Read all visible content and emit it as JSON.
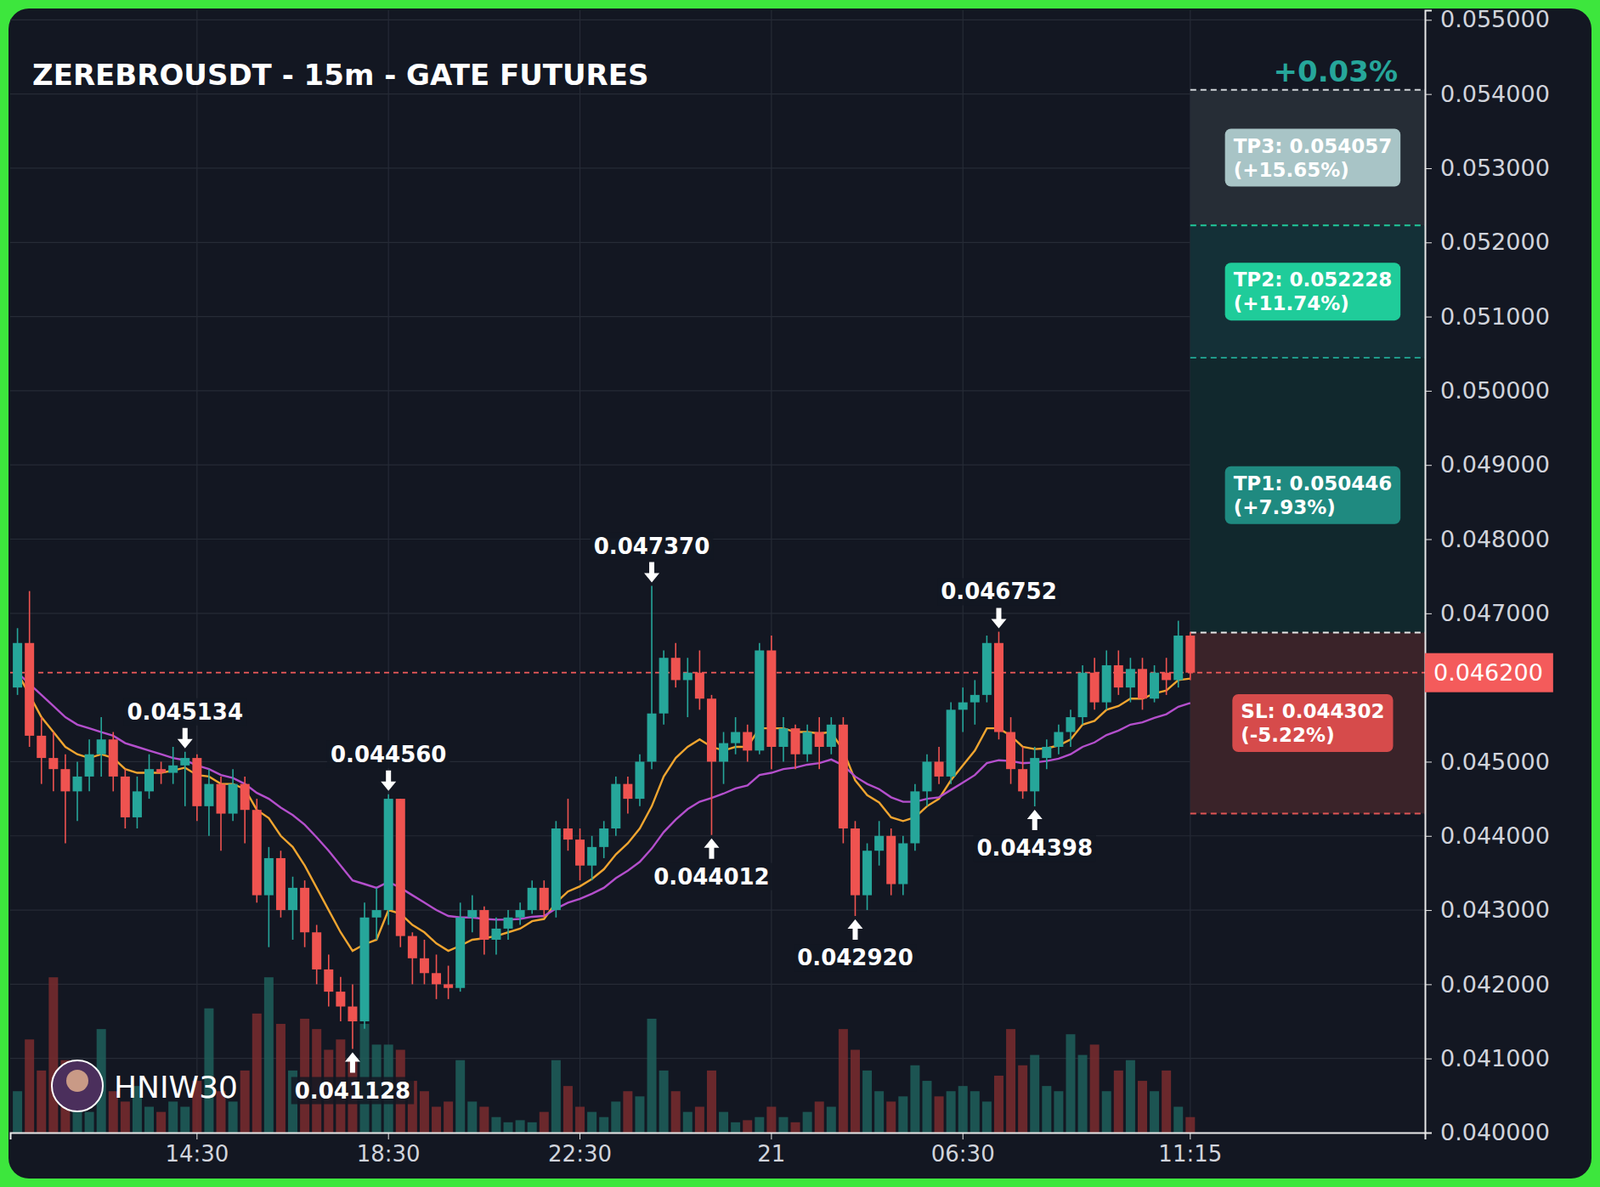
{
  "chart_data": {
    "type": "candlestick",
    "title": "ZEREBROUSDT - 15m - GATE FUTURES",
    "categories": [
      null,
      null,
      null,
      null,
      null,
      null,
      null,
      null,
      null,
      null,
      null,
      null,
      null,
      null,
      null,
      "14:30",
      null,
      null,
      null,
      null,
      null,
      null,
      null,
      null,
      null,
      null,
      null,
      null,
      null,
      null,
      null,
      "18:30",
      null,
      null,
      null,
      null,
      null,
      null,
      null,
      null,
      null,
      null,
      null,
      null,
      null,
      null,
      null,
      "22:30",
      null,
      null,
      null,
      null,
      null,
      null,
      null,
      null,
      null,
      null,
      null,
      null,
      null,
      null,
      null,
      "21",
      null,
      null,
      null,
      null,
      null,
      null,
      null,
      null,
      null,
      null,
      null,
      null,
      null,
      null,
      null,
      "06:30",
      null,
      null,
      null,
      null,
      null,
      null,
      null,
      null,
      null,
      null,
      null,
      null,
      null,
      null,
      null,
      null,
      null,
      null,
      "11:15",
      null,
      null,
      null,
      null,
      null,
      null,
      null,
      null,
      null,
      null,
      null,
      null,
      null,
      null,
      null,
      null,
      null,
      null,
      null
    ],
    "open": [
      0.046,
      0.0466,
      0.04535,
      0.04505,
      0.0449,
      0.0446,
      0.0448,
      0.0451,
      0.0453,
      0.0448,
      0.04425,
      0.0446,
      0.0449,
      0.04485,
      0.04495,
      0.04505,
      0.0444,
      0.0447,
      0.0443,
      0.0447,
      0.04435,
      0.0432,
      0.0437,
      0.043,
      0.0433,
      0.0427,
      0.0422,
      0.0419,
      0.0417,
      0.0415,
      0.0429,
      0.043,
      0.0445,
      0.04265,
      0.04235,
      0.04215,
      0.042,
      0.04195,
      0.0429,
      0.043,
      0.0426,
      0.04275,
      0.0429,
      0.043,
      0.0433,
      0.043,
      0.0441,
      0.04395,
      0.0436,
      0.04385,
      0.0441,
      0.0447,
      0.0445,
      0.045,
      0.04565,
      0.0464,
      0.0461,
      0.0462,
      0.04585,
      0.045,
      0.04525,
      0.0454,
      0.04515,
      0.0465,
      0.0452,
      0.04545,
      0.0451,
      0.0454,
      0.0452,
      0.0455,
      0.0441,
      0.0432,
      0.0438,
      0.044,
      0.04335,
      0.0439,
      0.0446,
      0.045,
      0.0448,
      0.0457,
      0.0458,
      0.0459,
      0.0466,
      0.0454,
      0.0449,
      0.0446,
      0.04505,
      0.0452,
      0.0454,
      0.0456,
      0.0462,
      0.0458,
      0.0463,
      0.046,
      0.04625,
      0.04585,
      0.0462,
      0.0461,
      0.0467,
      null,
      null,
      null,
      null,
      null,
      null,
      null,
      null,
      null,
      null,
      null,
      null,
      null,
      null,
      null,
      null,
      null,
      null,
      null
    ],
    "high": [
      0.0468,
      0.0473,
      0.0456,
      0.0454,
      0.0451,
      0.045,
      0.0453,
      0.0456,
      0.0454,
      0.0449,
      0.0448,
      0.0451,
      0.045,
      0.0452,
      0.045134,
      0.0451,
      0.0449,
      0.0448,
      0.0449,
      0.0448,
      0.0445,
      0.04385,
      0.0438,
      0.04345,
      0.0434,
      0.0428,
      0.0424,
      0.0421,
      0.042,
      0.0431,
      0.0433,
      0.04456,
      0.0445,
      0.0427,
      0.0426,
      0.0424,
      0.04225,
      0.0431,
      0.0432,
      0.04305,
      0.0429,
      0.043,
      0.0431,
      0.0434,
      0.0434,
      0.0442,
      0.0445,
      0.0441,
      0.044,
      0.0442,
      0.0448,
      0.0448,
      0.0451,
      0.04737,
      0.0465,
      0.0466,
      0.0464,
      0.0465,
      0.0459,
      0.0454,
      0.0456,
      0.0455,
      0.0466,
      0.0467,
      0.0456,
      0.0455,
      0.0455,
      0.0456,
      0.0456,
      0.0456,
      0.0442,
      0.0439,
      0.0442,
      0.0441,
      0.044,
      0.0447,
      0.0451,
      0.0452,
      0.0458,
      0.046,
      0.0461,
      0.0467,
      0.046752,
      0.0456,
      0.0452,
      0.0452,
      0.0453,
      0.0455,
      0.0457,
      0.0463,
      0.0464,
      0.0465,
      0.0465,
      0.0464,
      0.0464,
      0.0463,
      0.0464,
      0.0469,
      0.04675,
      null,
      null,
      null,
      null,
      null,
      null,
      null,
      null,
      null,
      null,
      null,
      null,
      null,
      null,
      null,
      null,
      null,
      null,
      null
    ],
    "low": [
      0.0459,
      0.0452,
      0.0447,
      0.0446,
      0.0439,
      0.0442,
      0.0446,
      0.0448,
      0.0446,
      0.0441,
      0.0441,
      0.0445,
      0.0447,
      0.0447,
      0.0444,
      0.0442,
      0.044,
      0.0438,
      0.0442,
      0.0439,
      0.0431,
      0.0425,
      0.0429,
      0.0426,
      0.0425,
      0.042,
      0.0417,
      0.0415,
      0.041128,
      0.0414,
      0.0426,
      0.0428,
      0.0425,
      0.042,
      0.042,
      0.0418,
      0.0418,
      0.0419,
      0.0427,
      0.0424,
      0.0424,
      0.0426,
      0.0428,
      0.04295,
      0.0429,
      0.0429,
      0.0438,
      0.0434,
      0.0434,
      0.0437,
      0.044,
      0.0443,
      0.0444,
      0.0449,
      0.0455,
      0.046,
      0.0456,
      0.0457,
      0.044012,
      0.0447,
      0.0451,
      0.045,
      0.0451,
      0.0449,
      0.045,
      0.0449,
      0.045,
      0.0449,
      0.0451,
      0.0439,
      0.04292,
      0.043,
      0.0436,
      0.0432,
      0.0432,
      0.0438,
      0.0444,
      0.0447,
      0.0447,
      0.0454,
      0.0455,
      0.0458,
      0.0453,
      0.0447,
      0.0445,
      0.044398,
      0.0449,
      0.0451,
      0.0452,
      0.0455,
      0.0457,
      0.0457,
      0.0459,
      0.0458,
      0.0457,
      0.0458,
      0.0459,
      0.046,
      0.0461,
      null,
      null,
      null,
      null,
      null,
      null,
      null,
      null,
      null,
      null,
      null,
      null,
      null,
      null,
      null,
      null,
      null,
      null,
      null
    ],
    "close": [
      0.0466,
      0.04535,
      0.04505,
      0.0449,
      0.0446,
      0.0448,
      0.0451,
      0.0453,
      0.0448,
      0.04425,
      0.0446,
      0.0449,
      0.04485,
      0.04495,
      0.04505,
      0.0444,
      0.0447,
      0.0443,
      0.0447,
      0.04435,
      0.0432,
      0.0437,
      0.043,
      0.0433,
      0.0427,
      0.0422,
      0.0419,
      0.0417,
      0.0415,
      0.0429,
      0.043,
      0.0445,
      0.04265,
      0.04235,
      0.04215,
      0.042,
      0.04195,
      0.0429,
      0.043,
      0.0426,
      0.04275,
      0.0429,
      0.043,
      0.0433,
      0.043,
      0.0441,
      0.04395,
      0.0436,
      0.04385,
      0.0441,
      0.0447,
      0.0445,
      0.045,
      0.04565,
      0.0464,
      0.0461,
      0.0462,
      0.04585,
      0.045,
      0.04525,
      0.0454,
      0.04515,
      0.0465,
      0.0452,
      0.04545,
      0.0451,
      0.0454,
      0.0452,
      0.0455,
      0.0441,
      0.0432,
      0.0438,
      0.044,
      0.04335,
      0.0439,
      0.0446,
      0.045,
      0.0448,
      0.0457,
      0.0458,
      0.0459,
      0.0466,
      0.0454,
      0.0449,
      0.0446,
      0.04505,
      0.0452,
      0.0454,
      0.0456,
      0.0462,
      0.0458,
      0.0463,
      0.046,
      0.04625,
      0.04585,
      0.0462,
      0.0461,
      0.0467,
      0.0462,
      null,
      null,
      null,
      null,
      null,
      null,
      null,
      null,
      null,
      null,
      null,
      null,
      null,
      null,
      null,
      null,
      null,
      null,
      null
    ],
    "volume": [
      40,
      90,
      60,
      150,
      70,
      30,
      20,
      100,
      40,
      30,
      45,
      25,
      20,
      30,
      25,
      50,
      120,
      40,
      30,
      60,
      115,
      150,
      105,
      60,
      110,
      100,
      80,
      90,
      70,
      105,
      85,
      85,
      80,
      50,
      40,
      25,
      30,
      70,
      30,
      25,
      15,
      10,
      12,
      10,
      20,
      70,
      45,
      25,
      20,
      15,
      30,
      40,
      35,
      110,
      60,
      40,
      20,
      25,
      60,
      20,
      10,
      12,
      15,
      25,
      15,
      10,
      20,
      30,
      25,
      100,
      80,
      60,
      40,
      30,
      35,
      65,
      50,
      35,
      40,
      45,
      40,
      30,
      55,
      100,
      65,
      75,
      45,
      40,
      95,
      75,
      85,
      40,
      60,
      70,
      50,
      40,
      60,
      25,
      15,
      null,
      null,
      null,
      null,
      null,
      null,
      null,
      null,
      null,
      null,
      null,
      null,
      null,
      null,
      null,
      null,
      null,
      null,
      null
    ],
    "volume_lim": [
      0,
      160
    ],
    "series": [
      {
        "type": "line",
        "color": "#f0a530",
        "values": [
          0.0462,
          0.0459,
          0.0456,
          0.0454,
          0.0452,
          0.0451,
          0.04505,
          0.0451,
          0.04505,
          0.0449,
          0.04485,
          0.04485,
          0.04485,
          0.04488,
          0.04492,
          0.04482,
          0.0448,
          0.0447,
          0.0447,
          0.04463,
          0.04435,
          0.04424,
          0.044,
          0.04385,
          0.0436,
          0.0433,
          0.043,
          0.0427,
          0.04245,
          0.04254,
          0.0426,
          0.043,
          0.04295,
          0.0428,
          0.0427,
          0.04255,
          0.04245,
          0.04252,
          0.0426,
          0.04262,
          0.04265,
          0.0427,
          0.04275,
          0.04285,
          0.04288,
          0.0431,
          0.04325,
          0.04332,
          0.04342,
          0.04355,
          0.04375,
          0.0439,
          0.0441,
          0.0444,
          0.0448,
          0.04505,
          0.0452,
          0.0453,
          0.0452,
          0.04515,
          0.0452,
          0.0452,
          0.04545,
          0.04545,
          0.04545,
          0.0454,
          0.0454,
          0.04538,
          0.0454,
          0.04515,
          0.04475,
          0.04455,
          0.04445,
          0.04425,
          0.0442,
          0.04425,
          0.0444,
          0.0445,
          0.04475,
          0.04495,
          0.04515,
          0.04545,
          0.04545,
          0.04535,
          0.0452,
          0.04517,
          0.04518,
          0.04522,
          0.0453,
          0.0455,
          0.04555,
          0.0457,
          0.04575,
          0.04585,
          0.04585,
          0.04592,
          0.04596,
          0.0461,
          0.04612,
          null,
          null,
          null,
          null,
          null,
          null,
          null,
          null,
          null,
          null,
          null,
          null,
          null,
          null,
          null,
          null,
          null,
          null,
          null
        ]
      },
      {
        "type": "line",
        "color": "#b44fcc",
        "values": [
          0.0462,
          0.04605,
          0.0459,
          0.04575,
          0.0456,
          0.0455,
          0.04545,
          0.0454,
          0.04535,
          0.04525,
          0.0452,
          0.04515,
          0.0451,
          0.04505,
          0.04502,
          0.04495,
          0.0449,
          0.04482,
          0.04478,
          0.0447,
          0.04458,
          0.0445,
          0.04438,
          0.04428,
          0.04415,
          0.04398,
          0.0438,
          0.0436,
          0.0434,
          0.04335,
          0.0433,
          0.04338,
          0.0433,
          0.0432,
          0.0431,
          0.043,
          0.04292,
          0.0429,
          0.0429,
          0.04288,
          0.04287,
          0.04287,
          0.04288,
          0.04291,
          0.04292,
          0.04302,
          0.0431,
          0.04315,
          0.04322,
          0.0433,
          0.04343,
          0.04353,
          0.04365,
          0.04383,
          0.04405,
          0.04422,
          0.04436,
          0.04446,
          0.04451,
          0.04457,
          0.04464,
          0.04468,
          0.04482,
          0.04485,
          0.0449,
          0.04492,
          0.04496,
          0.04498,
          0.04503,
          0.04495,
          0.0448,
          0.0447,
          0.04463,
          0.04452,
          0.04446,
          0.04446,
          0.0445,
          0.04452,
          0.04462,
          0.04472,
          0.04482,
          0.04498,
          0.04502,
          0.04501,
          0.04498,
          0.04499,
          0.04501,
          0.04504,
          0.0451,
          0.0452,
          0.04526,
          0.04536,
          0.04542,
          0.0455,
          0.04553,
          0.04559,
          0.04564,
          0.04574,
          0.04579,
          null,
          null,
          null,
          null,
          null,
          null,
          null,
          null,
          null,
          null,
          null,
          null,
          null,
          null,
          null,
          null,
          null,
          null,
          null
        ]
      }
    ],
    "ylim": [
      0.04,
      0.05513
    ],
    "yticks": [
      {
        "value": 0.04,
        "label": "0.040000"
      },
      {
        "value": 0.041,
        "label": "0.041000"
      },
      {
        "value": 0.042,
        "label": "0.042000"
      },
      {
        "value": 0.043,
        "label": "0.043000"
      },
      {
        "value": 0.044,
        "label": "0.044000"
      },
      {
        "value": 0.045,
        "label": "0.045000"
      },
      {
        "value": 0.047,
        "label": "0.047000"
      },
      {
        "value": 0.048,
        "label": "0.048000"
      },
      {
        "value": 0.049,
        "label": "0.049000"
      },
      {
        "value": 0.05,
        "label": "0.050000"
      },
      {
        "value": 0.051,
        "label": "0.051000"
      },
      {
        "value": 0.052,
        "label": "0.052000"
      },
      {
        "value": 0.053,
        "label": "0.053000"
      },
      {
        "value": 0.054,
        "label": "0.054000"
      },
      {
        "value": 0.055,
        "label": "0.055000"
      }
    ],
    "grid": true,
    "last_price": {
      "value": 0.0462,
      "label": "0.046200"
    },
    "annotations": [
      {
        "text": "0.045134",
        "index": 14,
        "value": 0.045134,
        "kind": "high"
      },
      {
        "text": "0.044560",
        "index": 31,
        "value": 0.04456,
        "kind": "high"
      },
      {
        "text": "0.047370",
        "index": 53,
        "value": 0.04737,
        "kind": "high"
      },
      {
        "text": "0.046752",
        "index": 82,
        "value": 0.046752,
        "kind": "high"
      },
      {
        "text": "0.041128",
        "index": 28,
        "value": 0.041128,
        "kind": "low"
      },
      {
        "text": "0.044012",
        "index": 58,
        "value": 0.044012,
        "kind": "low"
      },
      {
        "text": "0.042920",
        "index": 70,
        "value": 0.04292,
        "kind": "low"
      },
      {
        "text": "0.044398",
        "index": 85,
        "value": 0.044398,
        "kind": "low"
      }
    ],
    "position": {
      "start_index": 98,
      "entry": 0.04674,
      "change": {
        "value": 0.03,
        "label": "+0.03%"
      },
      "take_profits": [
        {
          "value": 0.050446,
          "label": "TP1: 0.050446",
          "pct": "(+7.93%)"
        },
        {
          "value": 0.052228,
          "label": "TP2: 0.052228",
          "pct": "(+11.74%)"
        },
        {
          "value": 0.054057,
          "label": "TP3: 0.054057",
          "pct": "(+15.65%)"
        }
      ],
      "stop_loss": {
        "value": 0.044302,
        "label": "SL: 0.044302",
        "pct": "(-5.22%)"
      }
    },
    "watermark": "HNIW30"
  }
}
